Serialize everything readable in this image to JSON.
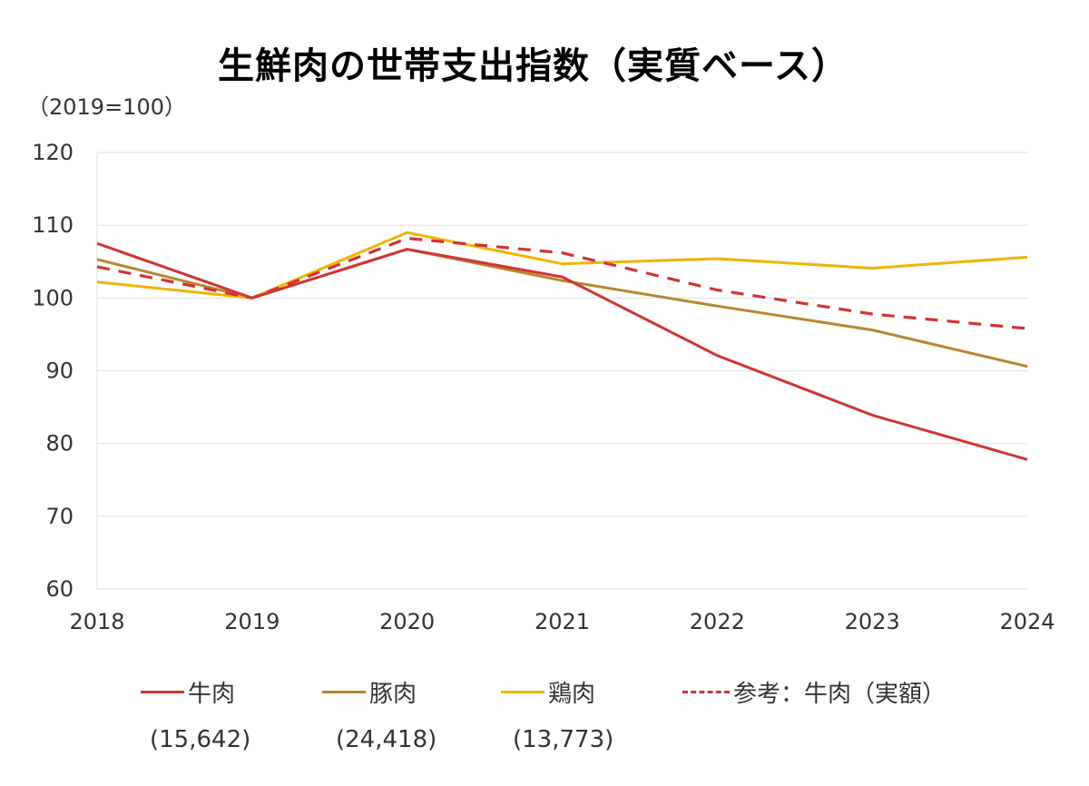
{
  "chart_data": {
    "type": "line",
    "title": "生鮮肉の世帯支出指数（実質ベース）",
    "unit_label": "（2019=100）",
    "xlabel": "",
    "ylabel": "",
    "x": [
      "2018",
      "2019",
      "2020",
      "2021",
      "2022",
      "2023",
      "2024"
    ],
    "ylim": [
      60,
      120
    ],
    "yticks": [
      "60",
      "70",
      "80",
      "90",
      "100",
      "110",
      "120"
    ],
    "grid": true,
    "legend_position": "bottom",
    "series": [
      {
        "name": "牛肉",
        "note": "(15,642)",
        "color": "#d03434",
        "style": "solid",
        "values": [
          107.5,
          100.0,
          106.7,
          102.9,
          92.1,
          83.9,
          77.8
        ]
      },
      {
        "name": "豚肉",
        "note": "(24,418)",
        "color": "#b8862e",
        "style": "solid",
        "values": [
          105.3,
          100.0,
          106.7,
          102.4,
          98.9,
          95.6,
          90.6
        ]
      },
      {
        "name": "鶏肉",
        "note": "(13,773)",
        "color": "#f0b400",
        "style": "solid",
        "values": [
          102.2,
          100.0,
          109.0,
          104.7,
          105.4,
          104.1,
          105.6
        ]
      },
      {
        "name": "参考：牛肉（実額）",
        "note": "",
        "color": "#d03434",
        "style": "dashed",
        "values": [
          104.3,
          100.0,
          108.2,
          106.2,
          101.1,
          97.8,
          95.8
        ]
      }
    ]
  }
}
